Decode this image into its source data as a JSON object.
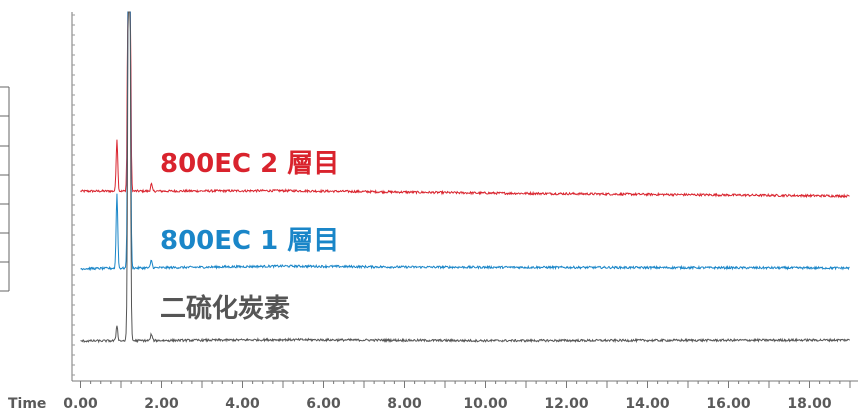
{
  "chart_data": {
    "type": "line",
    "x_axis_label": "Time",
    "xlim": [
      0,
      19
    ],
    "x_ticks": [
      0,
      2,
      4,
      6,
      8,
      10,
      12,
      14,
      16,
      18
    ],
    "x_tick_labels": [
      "0.00",
      "2.00",
      "4.00",
      "6.00",
      "8.00",
      "10.00",
      "12.00",
      "14.00",
      "16.00",
      "18.00"
    ],
    "grid": false,
    "series": [
      {
        "name": "800EC 2 層目",
        "color": "#d9232d",
        "baseline_points": [
          [
            0,
            0.75
          ],
          [
            2,
            0.75
          ],
          [
            5,
            0.82
          ],
          [
            10,
            0.45
          ],
          [
            19,
            0.0
          ]
        ],
        "peaks": [
          [
            0.9,
            8.0
          ],
          [
            1.2,
            99.0
          ],
          [
            1.75,
            1.1
          ]
        ]
      },
      {
        "name": "800EC 1 層目",
        "color": "#1a86c8",
        "baseline_points": [
          [
            0,
            0.05
          ],
          [
            2,
            0.2
          ],
          [
            5,
            0.45
          ],
          [
            8,
            0.3
          ],
          [
            19,
            0.15
          ]
        ],
        "peaks": [
          [
            0.9,
            11.5
          ],
          [
            1.2,
            99.0
          ],
          [
            1.75,
            1.2
          ]
        ]
      },
      {
        "name": "二硫化炭素",
        "color": "#555555",
        "baseline_points": [
          [
            0,
            0.0
          ],
          [
            5,
            0.2
          ],
          [
            10,
            0.05
          ],
          [
            19,
            0.15
          ]
        ],
        "peaks": [
          [
            0.9,
            2.4
          ],
          [
            1.2,
            99.0
          ],
          [
            1.75,
            1.0
          ]
        ]
      }
    ]
  }
}
